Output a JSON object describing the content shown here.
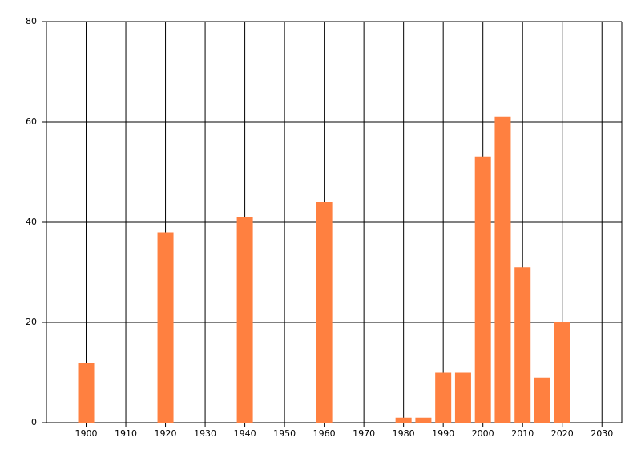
{
  "chart_data": {
    "type": "bar",
    "x": [
      1900,
      1920,
      1940,
      1960,
      1980,
      1985,
      1990,
      1995,
      2000,
      2005,
      2010,
      2015,
      2020
    ],
    "values": [
      12,
      38,
      41,
      44,
      1,
      1,
      10,
      10,
      53,
      61,
      31,
      9,
      20
    ],
    "color": "#ff8040",
    "xlim": [
      1890,
      2035
    ],
    "xticks": [
      1900,
      1910,
      1920,
      1930,
      1940,
      1950,
      1960,
      1970,
      1980,
      1990,
      2000,
      2010,
      2020,
      2030
    ],
    "ylim": [
      0,
      80
    ],
    "yticks": [
      0,
      20,
      40,
      60,
      80
    ],
    "grid": true
  }
}
